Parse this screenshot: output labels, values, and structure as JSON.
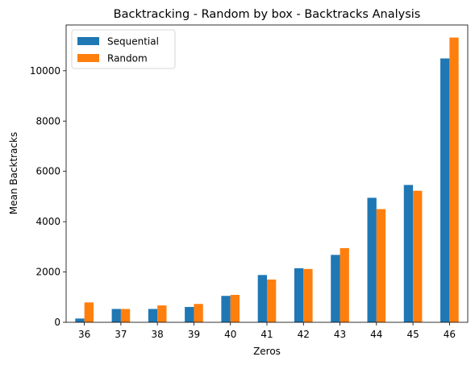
{
  "chart_data": {
    "type": "bar",
    "title": "Backtracking - Random by box - Backtracks Analysis",
    "xlabel": "Zeros",
    "ylabel": "Mean Backtracks",
    "categories": [
      "36",
      "37",
      "38",
      "39",
      "40",
      "41",
      "42",
      "43",
      "44",
      "45",
      "46"
    ],
    "series": [
      {
        "name": "Sequential",
        "color": "#1f77b4",
        "values": [
          150,
          530,
          530,
          610,
          1050,
          1880,
          2150,
          2680,
          4950,
          5460,
          10490
        ]
      },
      {
        "name": "Random",
        "color": "#ff7f0e",
        "values": [
          790,
          530,
          670,
          730,
          1090,
          1700,
          2120,
          2950,
          4500,
          5230,
          11320
        ]
      }
    ],
    "ylim": [
      0,
      11820
    ],
    "yticks": [
      0,
      2000,
      4000,
      6000,
      8000,
      10000
    ],
    "legend_position": "top-left",
    "grid": false
  }
}
